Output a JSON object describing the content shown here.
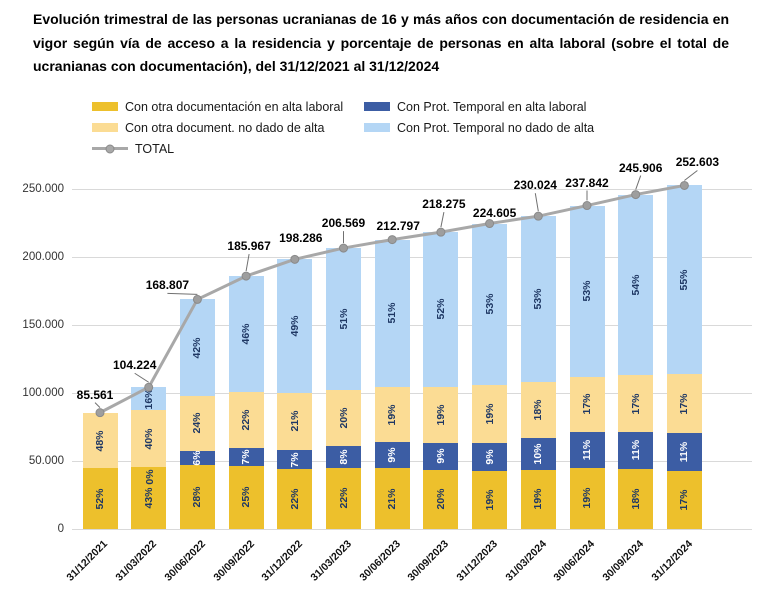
{
  "title": "Evolución trimestral de las personas ucranianas de 16 y más años con documentación de residencia en vigor según vía de acceso a la residencia y porcentaje de personas en alta laboral (sobre el total de ucranianas con documentación), del 31/12/2021 al 31/12/2024",
  "legend": {
    "items": [
      {
        "label": "Con otra documentación en alta laboral",
        "color": "#EDC02C",
        "shape": "swatch"
      },
      {
        "label": "Con Prot. Temporal en alta laboral",
        "color": "#3C5DA4",
        "shape": "swatch"
      },
      {
        "label": "Con otra document. no dado de alta",
        "color": "#FBDC94",
        "shape": "swatch"
      },
      {
        "label": "Con Prot. Temporal no dado de alta",
        "color": "#B4D6F5",
        "shape": "swatch"
      },
      {
        "label": "TOTAL",
        "color": "#A8A8A8",
        "shape": "line"
      }
    ]
  },
  "chart_data": {
    "type": "bar",
    "subtype": "stacked-bars-with-total-line",
    "categories": [
      "31/12/2021",
      "31/03/2022",
      "30/06/2022",
      "30/09/2022",
      "31/12/2022",
      "31/03/2023",
      "30/06/2023",
      "30/09/2023",
      "31/12/2023",
      "31/03/2024",
      "30/06/2024",
      "30/09/2024",
      "31/12/2024"
    ],
    "series": [
      {
        "name": "Con otra documentación en alta laboral",
        "color": "#EDC02C",
        "label_color": "#1F3864",
        "percent": [
          52,
          43,
          28,
          25,
          22,
          22,
          21,
          20,
          19,
          19,
          19,
          18,
          17
        ],
        "labels": [
          "52%",
          "43%",
          "28%",
          "25%",
          "22%",
          "22%",
          "21%",
          "20%",
          "19%",
          "19%",
          "19%",
          "18%",
          "17%"
        ]
      },
      {
        "name": "Con Prot. Temporal en alta laboral",
        "color": "#3C5DA4",
        "label_color": "#FFFFFF",
        "percent": [
          0,
          0,
          6,
          7,
          7,
          8,
          9,
          9,
          9,
          10,
          11,
          11,
          11
        ],
        "labels": [
          null,
          "0%",
          "6%",
          "7%",
          "7%",
          "8%",
          "9%",
          "9%",
          "9%",
          "10%",
          "11%",
          "11%",
          "11%"
        ]
      },
      {
        "name": "Con otra document. no dado de alta",
        "color": "#FBDC94",
        "label_color": "#1F3864",
        "percent": [
          48,
          40,
          24,
          22,
          21,
          20,
          19,
          19,
          19,
          18,
          17,
          17,
          17
        ],
        "labels": [
          "48%",
          "40%",
          "24%",
          "22%",
          "21%",
          "20%",
          "19%",
          "19%",
          "19%",
          "18%",
          "17%",
          "17%",
          "17%"
        ]
      },
      {
        "name": "Con Prot. Temporal no dado de alta",
        "color": "#B4D6F5",
        "label_color": "#1F3864",
        "percent": [
          0,
          16,
          42,
          46,
          49,
          51,
          51,
          52,
          53,
          53,
          53,
          54,
          55
        ],
        "labels": [
          null,
          "16%",
          "42%",
          "46%",
          "49%",
          "51%",
          "51%",
          "52%",
          "53%",
          "53%",
          "53%",
          "54%",
          "55%"
        ]
      }
    ],
    "line": {
      "name": "TOTAL",
      "color": "#A8A8A8",
      "values": [
        85561,
        104224,
        168807,
        185967,
        198286,
        206569,
        212797,
        218275,
        224605,
        230024,
        237842,
        245906,
        252603
      ],
      "labels": [
        "85.561",
        "104.224",
        "168.807",
        "185.967",
        "198.286",
        "206.569",
        "212.797",
        "218.275",
        "224.605",
        "230.024",
        "237.842",
        "245.906",
        "252.603"
      ]
    },
    "ylim": [
      0,
      250000
    ],
    "ytick_values": [
      0,
      50000,
      100000,
      150000,
      200000,
      250000
    ],
    "yticks": [
      "0",
      "50.000",
      "100.000",
      "150.000",
      "200.000",
      "250.000"
    ],
    "grid": true,
    "legend_position": "top-left",
    "xlabel": "",
    "ylabel": ""
  }
}
